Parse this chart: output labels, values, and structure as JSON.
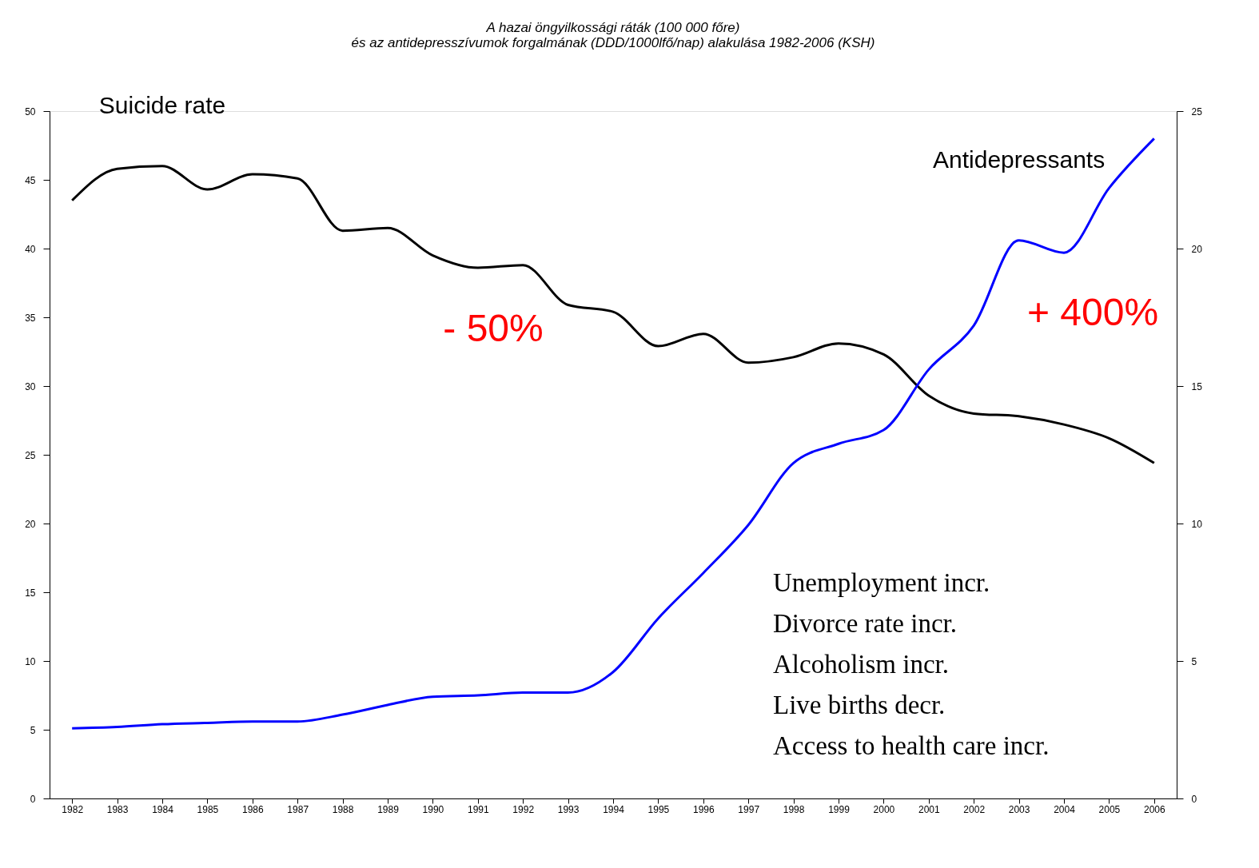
{
  "chart_data": {
    "type": "line",
    "title": [
      "A hazai öngyilkossági ráták (100 000 főre)",
      "és az antidepresszívumok forgalmának (DDD/1000lfő/nap) alakulása 1982-2006 (KSH)"
    ],
    "categories": [
      "1982",
      "1983",
      "1984",
      "1985",
      "1986",
      "1987",
      "1988",
      "1989",
      "1990",
      "1991",
      "1992",
      "1993",
      "1994",
      "1995",
      "1996",
      "1997",
      "1998",
      "1999",
      "2000",
      "2001",
      "2002",
      "2003",
      "2004",
      "2005",
      "2006"
    ],
    "series": [
      {
        "name": "Suicide rate",
        "color": "#000000",
        "values": [
          43.5,
          45.8,
          46.0,
          44.3,
          45.4,
          45.1,
          41.3,
          41.5,
          39.5,
          38.6,
          38.8,
          35.9,
          35.4,
          32.9,
          33.8,
          31.7,
          32.1,
          33.1,
          32.3,
          29.3,
          28.0,
          27.8,
          27.2,
          26.2,
          24.4
        ]
      },
      {
        "name": "Antidepressants",
        "color": "#0000ff",
        "axis": "y2",
        "values": [
          2.55,
          2.6,
          2.7,
          2.75,
          2.8,
          2.8,
          3.05,
          3.4,
          3.7,
          3.75,
          3.85,
          3.85,
          4.6,
          6.55,
          8.2,
          9.95,
          12.2,
          12.9,
          13.4,
          15.6,
          17.2,
          20.3,
          19.85,
          22.2,
          24.0
        ]
      }
    ],
    "ylim": [
      0,
      50
    ],
    "yticks": [
      0,
      5,
      10,
      15,
      20,
      25,
      30,
      35,
      40,
      45,
      50
    ],
    "y2lim": [
      0,
      25
    ],
    "y2ticks": [
      0,
      5,
      10,
      15,
      20,
      25
    ],
    "grid": false,
    "marker": "none",
    "line_style": "solid",
    "annotations": [
      "- 50%",
      "+ 400%",
      "Unemployment incr.\nDivorce rate incr.\nAlcoholism incr.\nLive births decr.\nAccess to health care  incr."
    ]
  }
}
